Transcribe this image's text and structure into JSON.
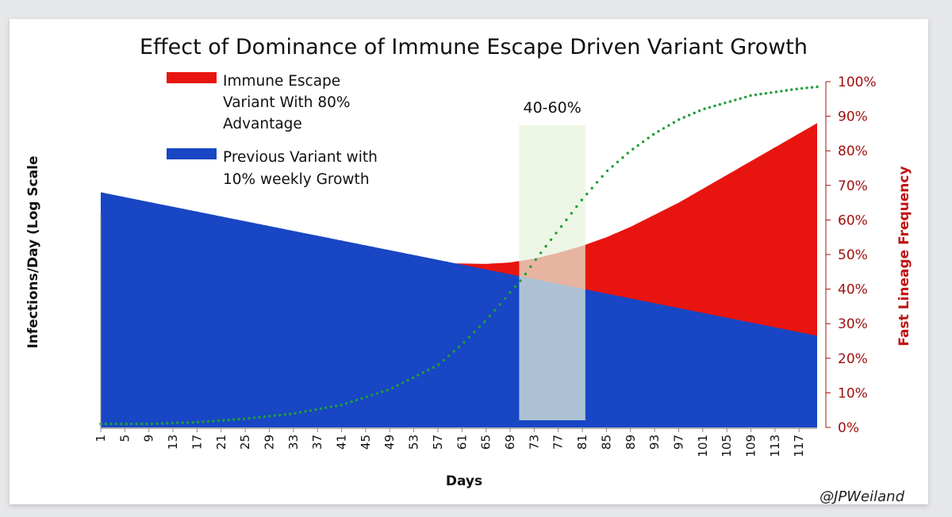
{
  "chart_data": {
    "type": "area",
    "title": "Effect of Dominance of Immune Escape Driven Variant Growth",
    "xlabel": "Days",
    "ylabel_left": "Infections/Day (Log Scale",
    "ylabel_right": "Fast Lineage Frequency",
    "x_range": [
      1,
      120
    ],
    "x_ticks": [
      1,
      5,
      9,
      13,
      17,
      21,
      25,
      29,
      33,
      37,
      41,
      45,
      49,
      53,
      57,
      61,
      65,
      69,
      73,
      77,
      81,
      85,
      89,
      93,
      97,
      101,
      105,
      109,
      113,
      117
    ],
    "right_axis_ticks": [
      "0%",
      "10%",
      "20%",
      "30%",
      "40%",
      "50%",
      "60%",
      "70%",
      "80%",
      "90%",
      "100%"
    ],
    "left_ylim": [
      0,
      100
    ],
    "series": [
      {
        "name": "Immune Escape Variant With 80% Advantage",
        "legend_lines": [
          "Immune Escape",
          "Variant With 80%",
          "Advantage"
        ],
        "type": "stacked-area-total",
        "color": "#e8140f",
        "x": [
          1,
          9,
          17,
          25,
          33,
          41,
          49,
          57,
          65,
          69,
          73,
          77,
          81,
          85,
          89,
          93,
          97,
          101,
          105,
          109,
          113,
          117,
          120
        ],
        "values": [
          68,
          65,
          61.5,
          58.5,
          55.5,
          52.5,
          49.5,
          47.5,
          47.3,
          47.7,
          48.8,
          50.5,
          52.5,
          55,
          58,
          61.5,
          65,
          69,
          73,
          77,
          81,
          85,
          88
        ]
      },
      {
        "name": "Previous Variant with 10% weekly Growth",
        "legend_lines": [
          "Previous Variant with",
          "10% weekly Growth"
        ],
        "type": "area",
        "color": "#1846c4",
        "x": [
          1,
          120
        ],
        "values": [
          68,
          26.5
        ]
      },
      {
        "name": "Fast Lineage Frequency",
        "type": "line-dotted",
        "axis": "right",
        "color": "#1e9e3a",
        "x": [
          1,
          9,
          17,
          25,
          33,
          41,
          49,
          57,
          61,
          65,
          69,
          71,
          73,
          77,
          81,
          85,
          89,
          93,
          97,
          101,
          105,
          109,
          113,
          117,
          120
        ],
        "values": [
          1,
          1,
          1.5,
          2.5,
          4,
          6.5,
          11,
          18,
          24,
          31,
          39,
          43,
          48,
          57,
          66,
          74,
          80,
          85,
          89,
          92,
          94,
          96,
          97,
          98,
          98.5
        ]
      }
    ],
    "highlight_band": {
      "x_range": [
        70.5,
        81.5
      ],
      "label": "40-60%",
      "color": "#e6f3da"
    },
    "credit": "@JPWeiland"
  }
}
